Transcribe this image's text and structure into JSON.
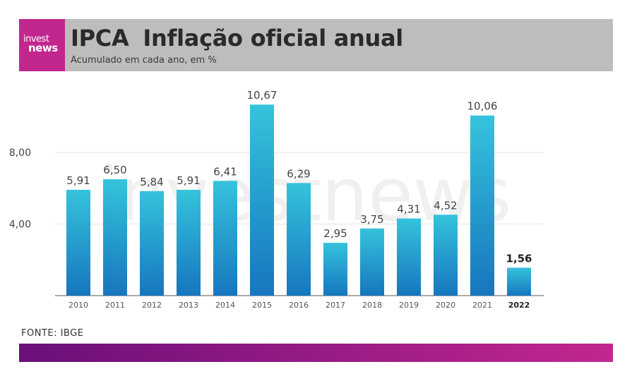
{
  "header": {
    "logo_top": "invest",
    "logo_bottom": "news",
    "title_main": "IPCA",
    "title_rest": "Inflação oficial anual",
    "subtitle": "Acumulado em cada ano, em %"
  },
  "watermark": "investnews",
  "source": "FONTE: IBGE",
  "colors": {
    "brand": "#c2278e",
    "bar_top": "#35c3dc",
    "bar_bottom": "#1676be",
    "header_bg": "#bdbdbd"
  },
  "chart_data": {
    "type": "bar",
    "title": "IPCA Inflação oficial anual",
    "subtitle": "Acumulado em cada ano, em %",
    "categories": [
      "2010",
      "2011",
      "2012",
      "2013",
      "2014",
      "2015",
      "2016",
      "2017",
      "2018",
      "2019",
      "2020",
      "2021",
      "2022"
    ],
    "values": [
      5.91,
      6.5,
      5.84,
      5.91,
      6.41,
      10.67,
      6.29,
      2.95,
      3.75,
      4.31,
      4.52,
      10.06,
      1.56
    ],
    "labels": [
      "5,91",
      "6,50",
      "5,84",
      "5,91",
      "6,41",
      "10,67",
      "6,29",
      "2,95",
      "3,75",
      "4,31",
      "4,52",
      "10,06",
      "1,56"
    ],
    "highlight": "2022",
    "yticks": [
      4,
      8
    ],
    "ytick_labels": [
      "4,00",
      "8,00"
    ],
    "ylim": [
      0,
      11.2
    ],
    "grid": true,
    "xlabel": "",
    "ylabel": ""
  }
}
